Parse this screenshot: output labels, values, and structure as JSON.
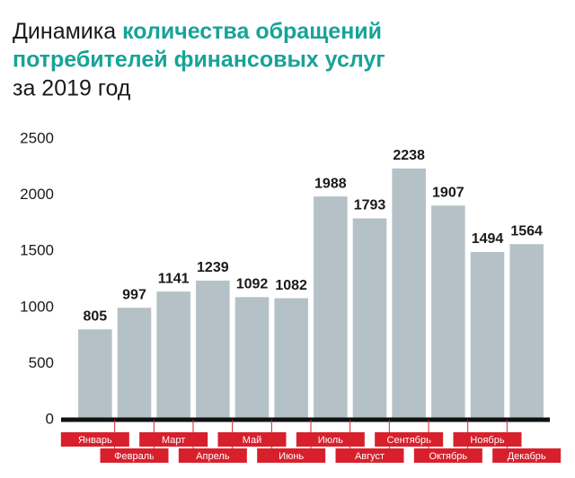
{
  "chart_data": {
    "type": "bar",
    "title": [
      "Динамика",
      "количества обращений",
      "потребителей финансовых услуг",
      "за 2019 год"
    ],
    "categories": [
      "Январь",
      "Февраль",
      "Март",
      "Апрель",
      "Май",
      "Июнь",
      "Июль",
      "Август",
      "Сентябрь",
      "Октябрь",
      "Ноябрь",
      "Декабрь"
    ],
    "values": [
      805,
      997,
      1141,
      1239,
      1092,
      1082,
      1988,
      1793,
      2238,
      1907,
      1494,
      1564
    ],
    "color": "#b4c2c8",
    "ylim": [
      0,
      2500
    ],
    "yticks": [
      0,
      500,
      1000,
      1500,
      2000,
      2500
    ],
    "grid": false
  }
}
